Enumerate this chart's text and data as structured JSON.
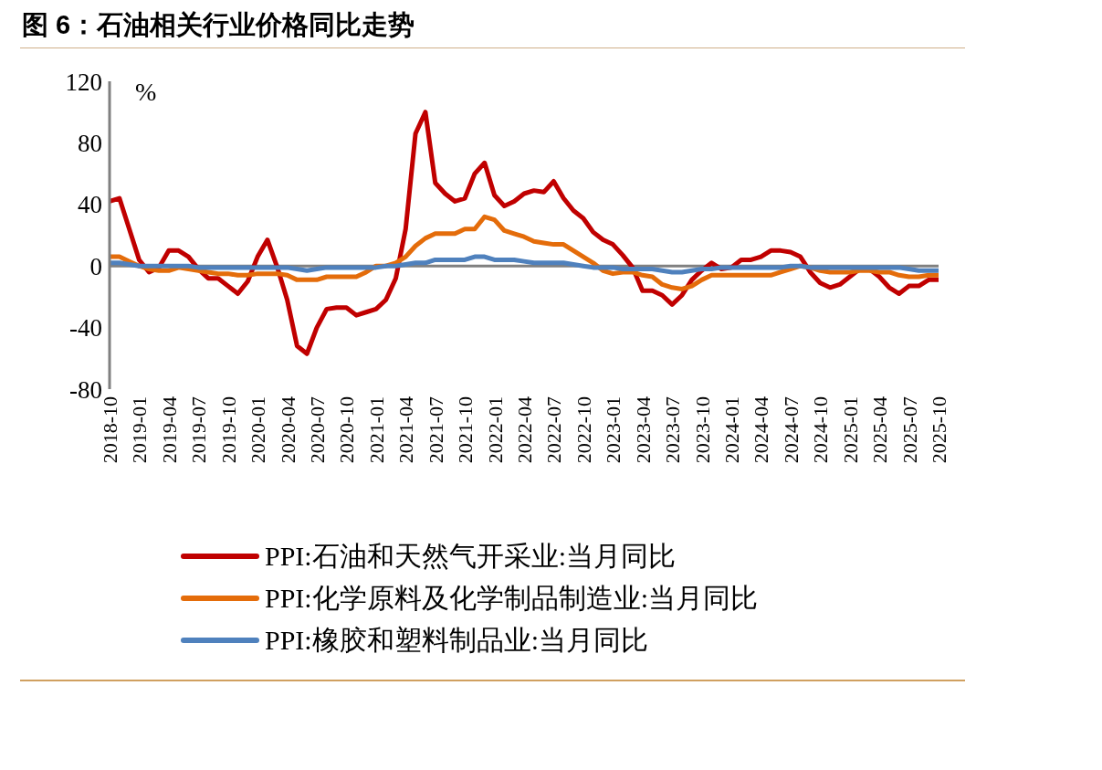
{
  "chart_data": {
    "type": "line",
    "title": "图 6：石油相关行业价格同比走势",
    "ylabel": "%",
    "categories": [
      "2018-10",
      null,
      null,
      "2019-01",
      null,
      null,
      "2019-04",
      null,
      null,
      "2019-07",
      null,
      null,
      "2019-10",
      null,
      null,
      "2020-01",
      null,
      null,
      "2020-04",
      null,
      null,
      "2020-07",
      null,
      null,
      "2020-10",
      null,
      null,
      "2021-01",
      null,
      null,
      "2021-04",
      null,
      null,
      "2021-07",
      null,
      null,
      "2021-10",
      null,
      null,
      "2022-01",
      null,
      null,
      "2022-04",
      null,
      null,
      "2022-07",
      null,
      null,
      "2022-10",
      null,
      null,
      "2023-01",
      null,
      null,
      "2023-04",
      null,
      null,
      "2023-07",
      null,
      null,
      "2023-10",
      null,
      null,
      "2024-01",
      null,
      null,
      "2024-04",
      null,
      null,
      "2024-07",
      null,
      null,
      "2024-10",
      null,
      null,
      "2025-01",
      null,
      null,
      "2025-04",
      null,
      null,
      "2025-07",
      null,
      null,
      "2025-10"
    ],
    "series": [
      {
        "name": "PPI:石油和天然气开采业:当月同比",
        "color": "#c00000",
        "values": [
          42,
          44,
          24,
          4,
          -4,
          -1,
          10,
          10,
          6,
          -2,
          -8,
          -8,
          -13,
          -18,
          -10,
          6,
          17,
          -1,
          -22,
          -52,
          -57,
          -40,
          -28,
          -27,
          -27,
          -32,
          -30,
          -28,
          -22,
          -8,
          24,
          86,
          100,
          54,
          47,
          42,
          44,
          60,
          67,
          46,
          39,
          42,
          47,
          49,
          48,
          55,
          44,
          36,
          31,
          22,
          17,
          14,
          7,
          -1,
          -16,
          -16,
          -19,
          -25,
          -19,
          -9,
          -3,
          2,
          -2,
          -1,
          4,
          4,
          6,
          10,
          10,
          9,
          6,
          -4,
          -11,
          -14,
          -12,
          -7,
          -2,
          -2,
          -7,
          -14,
          -18,
          -13,
          -13,
          -9,
          -9
        ]
      },
      {
        "name": "PPI:化学原料及化学制品制造业:当月同比",
        "color": "#e46c0a",
        "values": [
          6,
          6,
          3,
          0,
          -2,
          -3,
          -3,
          -1,
          -2,
          -3,
          -4,
          -5,
          -5,
          -6,
          -6,
          -5,
          -5,
          -5,
          -6,
          -9,
          -9,
          -9,
          -7,
          -7,
          -7,
          -7,
          -4,
          0,
          0,
          2,
          6,
          13,
          18,
          21,
          21,
          21,
          24,
          24,
          32,
          30,
          23,
          21,
          19,
          16,
          15,
          14,
          14,
          10,
          6,
          2,
          -3,
          -5,
          -4,
          -4,
          -6,
          -7,
          -12,
          -14,
          -15,
          -13,
          -9,
          -6,
          -6,
          -6,
          -6,
          -6,
          -6,
          -6,
          -4,
          -2,
          0,
          -1,
          -3,
          -4,
          -4,
          -4,
          -3,
          -3,
          -4,
          -4,
          -6,
          -7,
          -7,
          -6,
          -6
        ]
      },
      {
        "name": "PPI:橡胶和塑料制品业:当月同比",
        "color": "#4f81bd",
        "values": [
          2,
          2,
          1,
          0,
          0,
          0,
          0,
          0,
          0,
          -1,
          -1,
          -1,
          -1,
          -1,
          -1,
          -1,
          -1,
          -1,
          -1,
          -2,
          -3,
          -2,
          -1,
          -1,
          -1,
          -1,
          -1,
          -1,
          0,
          0,
          1,
          2,
          2,
          4,
          4,
          4,
          4,
          6,
          6,
          4,
          4,
          4,
          3,
          2,
          2,
          2,
          2,
          1,
          0,
          -1,
          -1,
          -1,
          -2,
          -2,
          -2,
          -2,
          -3,
          -4,
          -4,
          -3,
          -2,
          -2,
          -1,
          -1,
          -1,
          -1,
          -1,
          -1,
          -1,
          0,
          0,
          -1,
          -1,
          -1,
          -1,
          -1,
          -1,
          -1,
          -1,
          -1,
          -1,
          -2,
          -3,
          -3,
          -3
        ]
      }
    ],
    "ylim": [
      -80,
      120
    ],
    "yticks": [
      -80,
      -40,
      0,
      40,
      80,
      120
    ],
    "legend": "bottom",
    "ref_lines": [
      {
        "axis": "y",
        "value": 0,
        "color": "#808080"
      }
    ]
  }
}
